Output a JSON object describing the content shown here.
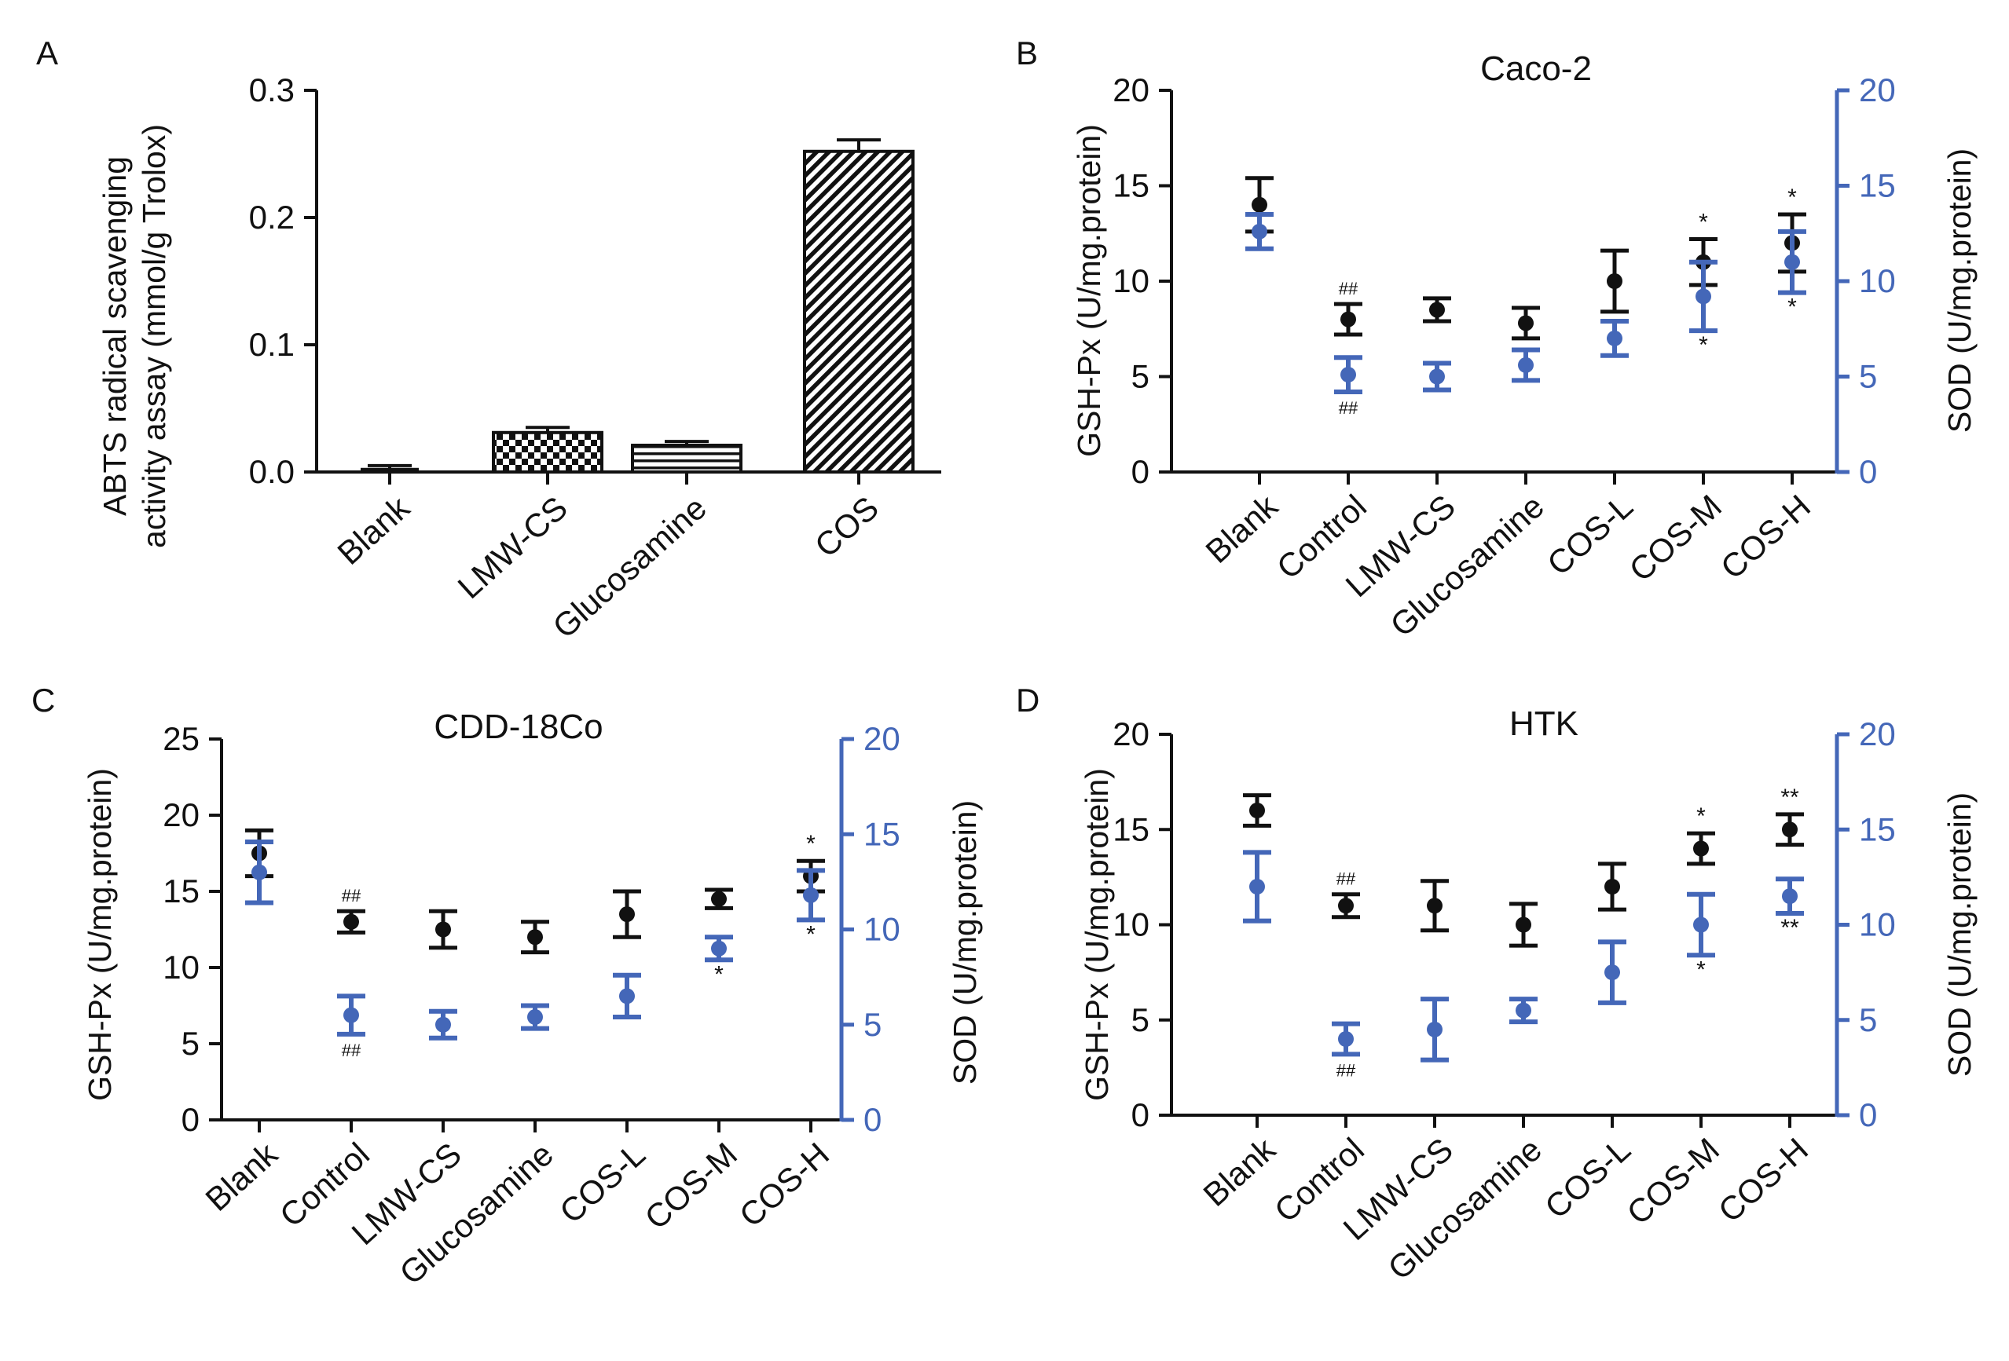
{
  "colors": {
    "black": "#111111",
    "blue": "#4467b8"
  },
  "chart_data": [
    {
      "panel_label": "A",
      "type": "bar",
      "title": "",
      "ylabel": "ABTS radical scavenging activity assay (mmol/g Trolox)",
      "categories": [
        "Blank",
        "LMW-CS",
        "Glucosamine",
        "COS"
      ],
      "values": [
        0.002,
        0.031,
        0.021,
        0.252
      ],
      "errors": [
        0.003,
        0.004,
        0.003,
        0.009
      ],
      "patterns": [
        "none",
        "checker",
        "hlines",
        "diag"
      ],
      "ylim": [
        0,
        0.3
      ],
      "yticks": [
        "0.0",
        "0.1",
        "0.2",
        "0.3"
      ]
    },
    {
      "panel_label": "B",
      "type": "scatter",
      "title": "Caco-2",
      "ylabel": "GSH-Px (U/mg.protein)",
      "ylabel_right": "SOD (U/mg.protein)",
      "categories": [
        "Blank",
        "Control",
        "LMW-CS",
        "Glucosamine",
        "COS-L",
        "COS-M",
        "COS-H"
      ],
      "ylim": [
        0,
        20
      ],
      "ylim_right": [
        0,
        20
      ],
      "yticks": [
        "0",
        "5",
        "10",
        "15",
        "20"
      ],
      "yticks_right": [
        "0",
        "5",
        "10",
        "15",
        "20"
      ],
      "series": [
        {
          "name": "GSH-Px",
          "axis": "left",
          "color": "black",
          "values": [
            14,
            8,
            8.5,
            7.8,
            10,
            11,
            12
          ],
          "errors": [
            1.4,
            0.8,
            0.6,
            0.8,
            1.6,
            1.2,
            1.5
          ],
          "annotations": [
            "",
            "##",
            "",
            "",
            "",
            "*",
            "*"
          ]
        },
        {
          "name": "SOD",
          "axis": "right",
          "color": "blue",
          "values": [
            12.6,
            5.1,
            5.0,
            5.6,
            7.0,
            9.2,
            11.0
          ],
          "errors": [
            0.9,
            0.9,
            0.7,
            0.8,
            0.9,
            1.8,
            1.6
          ],
          "annotations": [
            "",
            "##",
            "",
            "",
            "",
            "*",
            "*"
          ]
        }
      ]
    },
    {
      "panel_label": "C",
      "type": "scatter",
      "title": "CDD-18Co",
      "ylabel": "GSH-Px (U/mg.protein)",
      "ylabel_right": "SOD (U/mg.protein)",
      "categories": [
        "Blank",
        "Control",
        "LMW-CS",
        "Glucosamine",
        "COS-L",
        "COS-M",
        "COS-H"
      ],
      "ylim": [
        0,
        25
      ],
      "ylim_right": [
        0,
        20
      ],
      "yticks": [
        "0",
        "5",
        "10",
        "15",
        "20",
        "25"
      ],
      "yticks_right": [
        "0",
        "5",
        "10",
        "15",
        "20"
      ],
      "series": [
        {
          "name": "GSH-Px",
          "axis": "left",
          "color": "black",
          "values": [
            17.5,
            13,
            12.5,
            12,
            13.5,
            14.5,
            16
          ],
          "errors": [
            1.5,
            0.7,
            1.2,
            1.0,
            1.5,
            0.6,
            1.0
          ],
          "annotations": [
            "",
            "##",
            "",
            "",
            "",
            "",
            "*"
          ]
        },
        {
          "name": "SOD",
          "axis": "right",
          "color": "blue",
          "values": [
            13,
            5.5,
            5.0,
            5.4,
            6.5,
            9.0,
            11.8
          ],
          "errors": [
            1.6,
            1.0,
            0.7,
            0.6,
            1.1,
            0.6,
            1.3
          ],
          "annotations": [
            "",
            "##",
            "",
            "",
            "",
            "*",
            "*"
          ]
        }
      ]
    },
    {
      "panel_label": "D",
      "type": "scatter",
      "title": "HTK",
      "ylabel": "GSH-Px (U/mg.protein)",
      "ylabel_right": "SOD (U/mg.protein)",
      "categories": [
        "Blank",
        "Control",
        "LMW-CS",
        "Glucosamine",
        "COS-L",
        "COS-M",
        "COS-H"
      ],
      "ylim": [
        0,
        20
      ],
      "ylim_right": [
        0,
        20
      ],
      "yticks": [
        "0",
        "5",
        "10",
        "15",
        "20"
      ],
      "yticks_right": [
        "0",
        "5",
        "10",
        "15",
        "20"
      ],
      "series": [
        {
          "name": "GSH-Px",
          "axis": "left",
          "color": "black",
          "values": [
            16,
            11,
            11,
            10,
            12,
            14,
            15
          ],
          "errors": [
            0.8,
            0.6,
            1.3,
            1.1,
            1.2,
            0.8,
            0.8
          ],
          "annotations": [
            "",
            "##",
            "",
            "",
            "",
            "*",
            "**"
          ]
        },
        {
          "name": "SOD",
          "axis": "right",
          "color": "blue",
          "values": [
            12,
            4,
            4.5,
            5.5,
            7.5,
            10,
            11.5
          ],
          "errors": [
            1.8,
            0.8,
            1.6,
            0.6,
            1.6,
            1.6,
            0.9
          ],
          "annotations": [
            "",
            "##",
            "",
            "",
            "",
            "*",
            "**"
          ]
        }
      ]
    }
  ]
}
